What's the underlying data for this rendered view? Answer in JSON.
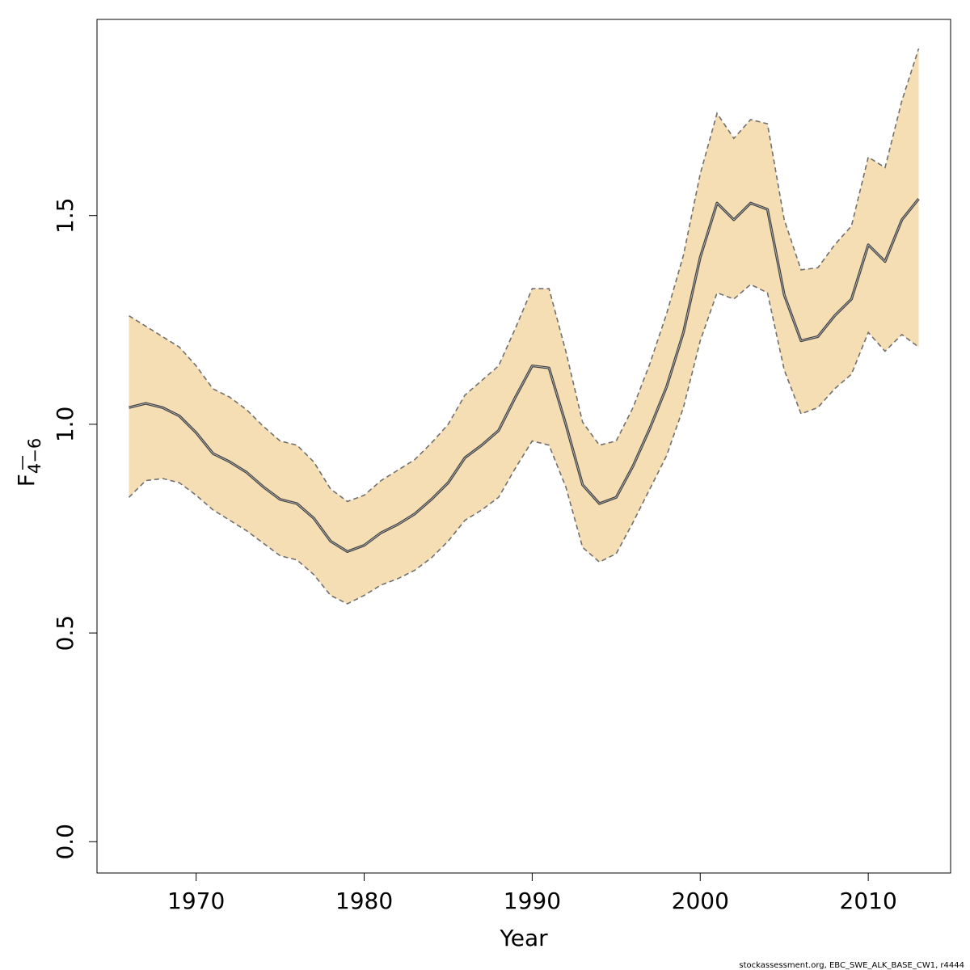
{
  "chart_data": {
    "type": "line",
    "xlabel": "Year",
    "ylabel": {
      "main": "F",
      "subscript": "4−6",
      "overline": true
    },
    "credit": "stockassessment.org, EBC_SWE_ALK_BASE_CW1, r4444",
    "xlim": [
      1964.1,
      2014.9
    ],
    "ylim": [
      -0.075,
      1.97
    ],
    "xticks": [
      1970,
      1980,
      1990,
      2000,
      2010
    ],
    "yticks": [
      0.0,
      0.5,
      1.0,
      1.5
    ],
    "ytick_labels": [
      "0.0",
      "0.5",
      "1.0",
      "1.5"
    ],
    "grid": false,
    "legend": "none",
    "colors": {
      "band": "#F5DEB3",
      "line": "#404040",
      "bound": "#707070"
    },
    "x": [
      1966,
      1967,
      1968,
      1969,
      1970,
      1971,
      1972,
      1973,
      1974,
      1975,
      1976,
      1977,
      1978,
      1979,
      1980,
      1981,
      1982,
      1983,
      1984,
      1985,
      1986,
      1987,
      1988,
      1989,
      1990,
      1991,
      1992,
      1993,
      1994,
      1995,
      1996,
      1997,
      1998,
      1999,
      2000,
      2001,
      2002,
      2003,
      2004,
      2005,
      2006,
      2007,
      2008,
      2009,
      2010,
      2011,
      2012,
      2013
    ],
    "series": [
      {
        "role": "estimate",
        "values": [
          1.04,
          1.05,
          1.04,
          1.02,
          0.98,
          0.93,
          0.91,
          0.885,
          0.85,
          0.82,
          0.81,
          0.775,
          0.72,
          0.695,
          0.71,
          0.74,
          0.76,
          0.785,
          0.82,
          0.86,
          0.92,
          0.95,
          0.985,
          1.065,
          1.14,
          1.135,
          1.0,
          0.855,
          0.81,
          0.825,
          0.9,
          0.99,
          1.09,
          1.22,
          1.4,
          1.53,
          1.49,
          1.53,
          1.515,
          1.31,
          1.2,
          1.21,
          1.26,
          1.3,
          1.43,
          1.39,
          1.49,
          1.54
        ]
      },
      {
        "role": "upper",
        "values": [
          1.26,
          1.235,
          1.21,
          1.185,
          1.14,
          1.085,
          1.065,
          1.035,
          0.995,
          0.96,
          0.95,
          0.91,
          0.845,
          0.815,
          0.83,
          0.865,
          0.89,
          0.915,
          0.955,
          1.0,
          1.07,
          1.105,
          1.14,
          1.23,
          1.325,
          1.325,
          1.175,
          1.005,
          0.95,
          0.96,
          1.04,
          1.145,
          1.265,
          1.405,
          1.6,
          1.745,
          1.685,
          1.73,
          1.72,
          1.49,
          1.37,
          1.375,
          1.43,
          1.475,
          1.64,
          1.615,
          1.775,
          1.9
        ]
      },
      {
        "role": "lower",
        "values": [
          0.825,
          0.865,
          0.87,
          0.86,
          0.83,
          0.795,
          0.77,
          0.745,
          0.715,
          0.685,
          0.675,
          0.64,
          0.59,
          0.57,
          0.59,
          0.615,
          0.63,
          0.65,
          0.68,
          0.72,
          0.77,
          0.795,
          0.825,
          0.895,
          0.96,
          0.95,
          0.85,
          0.705,
          0.67,
          0.69,
          0.765,
          0.845,
          0.925,
          1.04,
          1.2,
          1.315,
          1.3,
          1.335,
          1.315,
          1.13,
          1.025,
          1.04,
          1.085,
          1.12,
          1.22,
          1.175,
          1.215,
          1.185
        ]
      }
    ]
  }
}
